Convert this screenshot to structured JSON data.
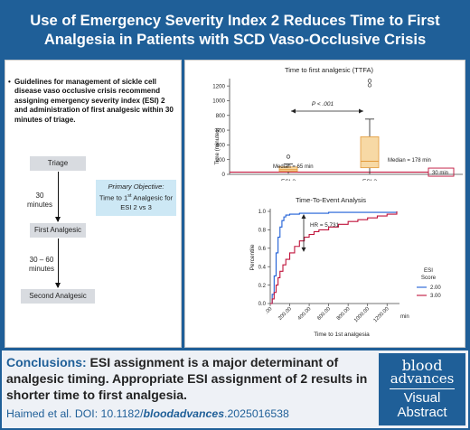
{
  "header": {
    "title_line1": "Use of Emergency Severity Index 2 Reduces Time to First",
    "title_line2": "Analgesia in Patients with SCD Vaso-Occlusive Crisis"
  },
  "left_panel": {
    "bullet": "Guidelines for management of sickle cell disease vaso occlusive crisis recommend assigning emergency severity index (ESI) 2 and administration of first analgesic within 30 minutes of triage.",
    "flow": {
      "triage": "Triage",
      "interval1": "30 minutes",
      "first_analgesic": "First Analgesic",
      "interval2_line1": "30 – 60",
      "interval2_line2": "minutes",
      "second_analgesic": "Second Analgesic"
    },
    "objective": {
      "title": "Primary Objective:",
      "line1_pre": "Time to 1",
      "line1_sup": "st",
      "line1_post": " Analgesic for",
      "line2": "ESI 2 vs 3"
    }
  },
  "bottom": {
    "conclusion_label": "Conclusions:",
    "conclusion_text": " ESI assignment is a major determinant of analgesic timing. Appropriate ESI assignment of 2 results in shorter time to first analgesia.",
    "citation_prefix": "Haimed et al. DOI: 10.1182/",
    "citation_journal": "bloodadvances",
    "citation_suffix": ".2025016538",
    "brand_line1": "blood",
    "brand_line2": "advances",
    "brand_line3": "Visual",
    "brand_line4": "Abstract"
  },
  "colors": {
    "brand_blue": "#1f5f98",
    "box_fill": "#f7d9a5",
    "box_stroke": "#e39a3a",
    "threshold_red": "#c0143c",
    "esi2_line": "#1f5fd6",
    "esi3_line": "#c0143c"
  },
  "chart_data": [
    {
      "type": "box",
      "title": "Time to first analgesic (TTFA)",
      "xlabel": "",
      "ylabel": "Time (minutes)",
      "categories": [
        "ESI 2",
        "ESI 3"
      ],
      "ylim": [
        0,
        1300
      ],
      "yticks": [
        0,
        200,
        400,
        600,
        800,
        1000,
        1200
      ],
      "boxes": [
        {
          "name": "ESI 2",
          "whisker_low": 10,
          "q1": 40,
          "median": 65,
          "q3": 100,
          "whisker_high": 140,
          "outliers": [
            240
          ]
        },
        {
          "name": "ESI 3",
          "whisker_low": 5,
          "q1": 90,
          "median": 178,
          "q3": 510,
          "whisker_high": 750,
          "outliers": [
            1210,
            1270
          ]
        }
      ],
      "threshold": 30,
      "annotations": {
        "pvalue": "P < .001",
        "median_esi2": "Median = 65 min",
        "median_esi3": "Median = 178 min",
        "threshold_label": "30 min"
      }
    },
    {
      "type": "line",
      "title": "Time-To-Event Analysis",
      "xlabel": "Time to 1st analgesia",
      "x_unit": "min",
      "ylabel": "Percentile",
      "xlim": [
        0,
        1300
      ],
      "ylim": [
        0,
        1.0
      ],
      "xticks": [
        ".00",
        "200.00",
        "400.00",
        "600.00",
        "800.00",
        "1000.00",
        "1200.00"
      ],
      "yticks": [
        "0.0",
        "0.2",
        "0.4",
        "0.6",
        "0.8",
        "1.0"
      ],
      "legend_title": "ESI Score",
      "annotation": "HR = 5.731",
      "series": [
        {
          "name": "2.00",
          "x": [
            0,
            20,
            40,
            60,
            80,
            100,
            120,
            140,
            160,
            200,
            300,
            400,
            600,
            1300
          ],
          "y": [
            0,
            0.1,
            0.3,
            0.55,
            0.72,
            0.83,
            0.9,
            0.94,
            0.96,
            0.97,
            0.98,
            0.98,
            0.99,
            1.0
          ]
        },
        {
          "name": "3.00",
          "x": [
            0,
            20,
            40,
            60,
            80,
            100,
            130,
            160,
            200,
            250,
            300,
            350,
            400,
            450,
            500,
            600,
            700,
            800,
            900,
            1000,
            1100,
            1200,
            1300
          ],
          "y": [
            0,
            0.05,
            0.12,
            0.2,
            0.28,
            0.35,
            0.42,
            0.48,
            0.55,
            0.62,
            0.68,
            0.72,
            0.75,
            0.78,
            0.8,
            0.83,
            0.86,
            0.89,
            0.91,
            0.93,
            0.95,
            0.97,
            1.0
          ]
        }
      ]
    }
  ]
}
